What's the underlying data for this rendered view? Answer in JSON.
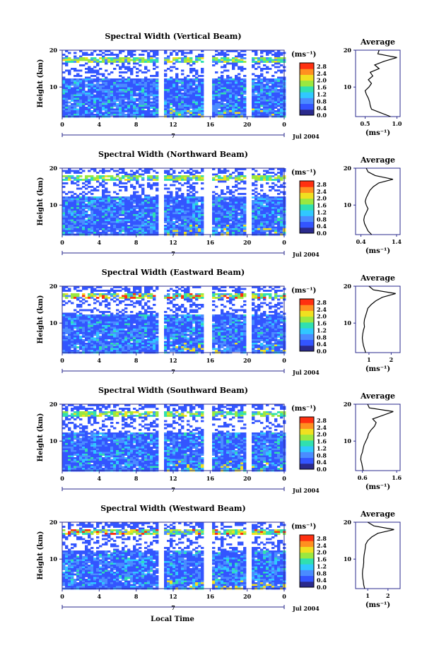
{
  "figure": {
    "xlabel": "Local Time",
    "date_label": "Jul 2004",
    "day_label": "7"
  },
  "chart_data": [
    {
      "type": "heatmap",
      "title": "Spectral Width (Vertical Beam)",
      "ylabel": "Height (km)",
      "ylim": [
        2,
        20
      ],
      "yticks": [
        "20",
        "10"
      ],
      "xticks": [
        "0",
        "4",
        "8",
        "12",
        "16",
        "20",
        "0"
      ],
      "colorbar": {
        "units": "(ms⁻¹)",
        "ticks": [
          "0.0",
          "0.4",
          "0.8",
          "1.2",
          "1.6",
          "2.0",
          "2.4",
          "2.8"
        ],
        "range": [
          0,
          3.0
        ]
      },
      "profile": {
        "title": "Average",
        "xlabel": "(ms⁻¹)",
        "xticks": [
          "0.5",
          "1.0"
        ],
        "xlim": [
          0.35,
          1.05
        ],
        "heights": [
          2,
          3,
          4,
          5,
          6,
          7,
          8,
          9,
          10,
          11,
          12,
          13,
          14,
          15,
          16,
          17,
          18,
          19,
          20
        ],
        "values": [
          0.9,
          0.75,
          0.6,
          0.58,
          0.57,
          0.55,
          0.52,
          0.5,
          0.56,
          0.6,
          0.55,
          0.62,
          0.58,
          0.72,
          0.65,
          0.8,
          1.0,
          0.7,
          0.72
        ]
      }
    },
    {
      "type": "heatmap",
      "title": "Spectral Width (Northward Beam)",
      "ylabel": "Height (km)",
      "ylim": [
        2,
        20
      ],
      "yticks": [
        "20",
        "10"
      ],
      "xticks": [
        "0",
        "4",
        "8",
        "12",
        "16",
        "20",
        "0"
      ],
      "colorbar": {
        "units": "(ms⁻¹)",
        "ticks": [
          "0.0",
          "0.4",
          "0.8",
          "1.2",
          "1.6",
          "2.0",
          "2.4",
          "2.8"
        ],
        "range": [
          0,
          3.0
        ]
      },
      "profile": {
        "title": "Average",
        "xlabel": "(ms⁻¹)",
        "xticks": [
          "0.4",
          "1.4"
        ],
        "xlim": [
          0.25,
          1.5
        ],
        "heights": [
          2,
          3,
          4,
          5,
          6,
          7,
          8,
          9,
          10,
          11,
          12,
          13,
          14,
          15,
          16,
          17,
          18,
          19,
          20
        ],
        "values": [
          0.7,
          0.6,
          0.55,
          0.5,
          0.48,
          0.5,
          0.55,
          0.6,
          0.55,
          0.52,
          0.55,
          0.6,
          0.65,
          0.75,
          0.9,
          1.3,
          0.8,
          0.6,
          0.55
        ]
      }
    },
    {
      "type": "heatmap",
      "title": "Spectral Width (Eastward Beam)",
      "ylabel": "Height (km)",
      "ylim": [
        2,
        20
      ],
      "yticks": [
        "20",
        "10"
      ],
      "xticks": [
        "0",
        "4",
        "8",
        "12",
        "16",
        "20",
        "0"
      ],
      "colorbar": {
        "units": "(ms⁻¹)",
        "ticks": [
          "0.0",
          "0.4",
          "0.8",
          "1.2",
          "1.6",
          "2.0",
          "2.4",
          "2.8"
        ],
        "range": [
          0,
          3.0
        ]
      },
      "profile": {
        "title": "Average",
        "xlabel": "(ms⁻¹)",
        "xticks": [
          "1",
          "2"
        ],
        "xlim": [
          0.4,
          2.4
        ],
        "heights": [
          2,
          3,
          4,
          5,
          6,
          7,
          8,
          9,
          10,
          11,
          12,
          13,
          14,
          15,
          16,
          17,
          18,
          19,
          20
        ],
        "values": [
          0.85,
          0.8,
          0.75,
          0.72,
          0.7,
          0.72,
          0.75,
          0.8,
          0.78,
          0.8,
          0.85,
          0.9,
          0.95,
          1.1,
          1.3,
          1.6,
          2.2,
          1.2,
          1.0
        ]
      }
    },
    {
      "type": "heatmap",
      "title": "Spectral Width (Southward Beam)",
      "ylabel": "Height (km)",
      "ylim": [
        2,
        20
      ],
      "yticks": [
        "20",
        "10"
      ],
      "xticks": [
        "0",
        "4",
        "8",
        "12",
        "16",
        "20",
        "0"
      ],
      "colorbar": {
        "units": "(ms⁻¹)",
        "ticks": [
          "0.0",
          "0.4",
          "0.8",
          "1.2",
          "1.6",
          "2.0",
          "2.4",
          "2.8"
        ],
        "range": [
          0,
          3.0
        ]
      },
      "profile": {
        "title": "Average",
        "xlabel": "(ms⁻¹)",
        "xticks": [
          "0.6",
          "1.6"
        ],
        "xlim": [
          0.4,
          1.7
        ],
        "heights": [
          2,
          3,
          4,
          5,
          6,
          7,
          8,
          9,
          10,
          11,
          12,
          13,
          14,
          15,
          16,
          17,
          18,
          19,
          20
        ],
        "values": [
          0.62,
          0.6,
          0.58,
          0.55,
          0.56,
          0.6,
          0.62,
          0.65,
          0.7,
          0.75,
          0.78,
          0.85,
          0.95,
          1.0,
          0.9,
          1.2,
          1.5,
          0.8,
          0.75
        ]
      }
    },
    {
      "type": "heatmap",
      "title": "Spectral Width (Westward Beam)",
      "ylabel": "Height (km)",
      "ylim": [
        2,
        20
      ],
      "yticks": [
        "20",
        "10"
      ],
      "xticks": [
        "0",
        "4",
        "8",
        "12",
        "16",
        "20",
        "0"
      ],
      "colorbar": {
        "units": "(ms⁻¹)",
        "ticks": [
          "0.0",
          "0.4",
          "0.8",
          "1.2",
          "1.6",
          "2.0",
          "2.4",
          "2.8"
        ],
        "range": [
          0,
          3.0
        ]
      },
      "profile": {
        "title": "Average",
        "xlabel": "(ms⁻¹)",
        "xticks": [
          "1",
          "2"
        ],
        "xlim": [
          0.4,
          2.6
        ],
        "heights": [
          2,
          3,
          4,
          5,
          6,
          7,
          8,
          9,
          10,
          11,
          12,
          13,
          14,
          15,
          16,
          17,
          18,
          19,
          20
        ],
        "values": [
          0.85,
          0.8,
          0.78,
          0.75,
          0.74,
          0.75,
          0.78,
          0.8,
          0.8,
          0.82,
          0.85,
          0.88,
          0.9,
          1.0,
          1.2,
          1.5,
          2.3,
          1.3,
          1.0
        ]
      }
    }
  ],
  "colors": {
    "scale": [
      "#2a2a8c",
      "#3355ff",
      "#4a8cff",
      "#30c8ff",
      "#30e0b0",
      "#9ae840",
      "#f0e020",
      "#ff9020",
      "#ff3010"
    ],
    "axis_accent": "#2a2a8c"
  }
}
